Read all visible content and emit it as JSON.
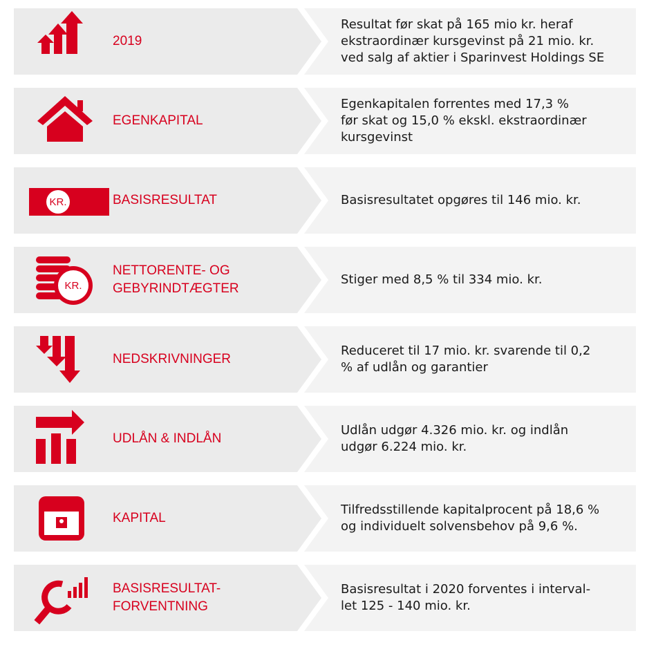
{
  "rows": [
    {
      "label": [
        "2019"
      ],
      "text": [
        "Resultat før skat på 165 mio kr.  heraf",
        "ekstraordinær kursgevinst på 21 mio. kr.",
        "ved salg af aktier i Sparinvest Holdings SE"
      ]
    },
    {
      "label": [
        "EGENKAPITAL"
      ],
      "text": [
        "Egenkapitalen forrentes med 17,3 %",
        "før skat og 15,0 % ekskl. ekstraordinær",
        "kursgevinst"
      ]
    },
    {
      "label": [
        "BASISRESULTAT"
      ],
      "icon_label": "KR.",
      "text": [
        "Basisresultatet opgøres til 146 mio. kr."
      ]
    },
    {
      "label": [
        "NETTORENTE- OG",
        "GEBYRINDTÆGTER"
      ],
      "icon_label": "KR.",
      "text": [
        "Stiger med 8,5 % til 334 mio. kr."
      ]
    },
    {
      "label": [
        "NEDSKRIVNINGER"
      ],
      "text": [
        "Reduceret til 17 mio. kr. svarende til 0,2",
        "% af udlån og garantier"
      ]
    },
    {
      "label": [
        "UDLÅN & INDLÅN"
      ],
      "text": [
        "Udlån udgør 4.326 mio. kr. og indlån",
        "udgør 6.224 mio. kr."
      ]
    },
    {
      "label": [
        "KAPITAL"
      ],
      "text": [
        "Tilfredsstillende kapitalprocent på 18,6 %",
        "og individuelt solvensbehov på 9,6 %."
      ]
    },
    {
      "label": [
        "BASISRESULTAT-",
        "FORVENTNING"
      ],
      "text": [
        "Basisresultat i 2020 forventes i interval-",
        "let 125 - 140 mio. kr."
      ]
    }
  ]
}
